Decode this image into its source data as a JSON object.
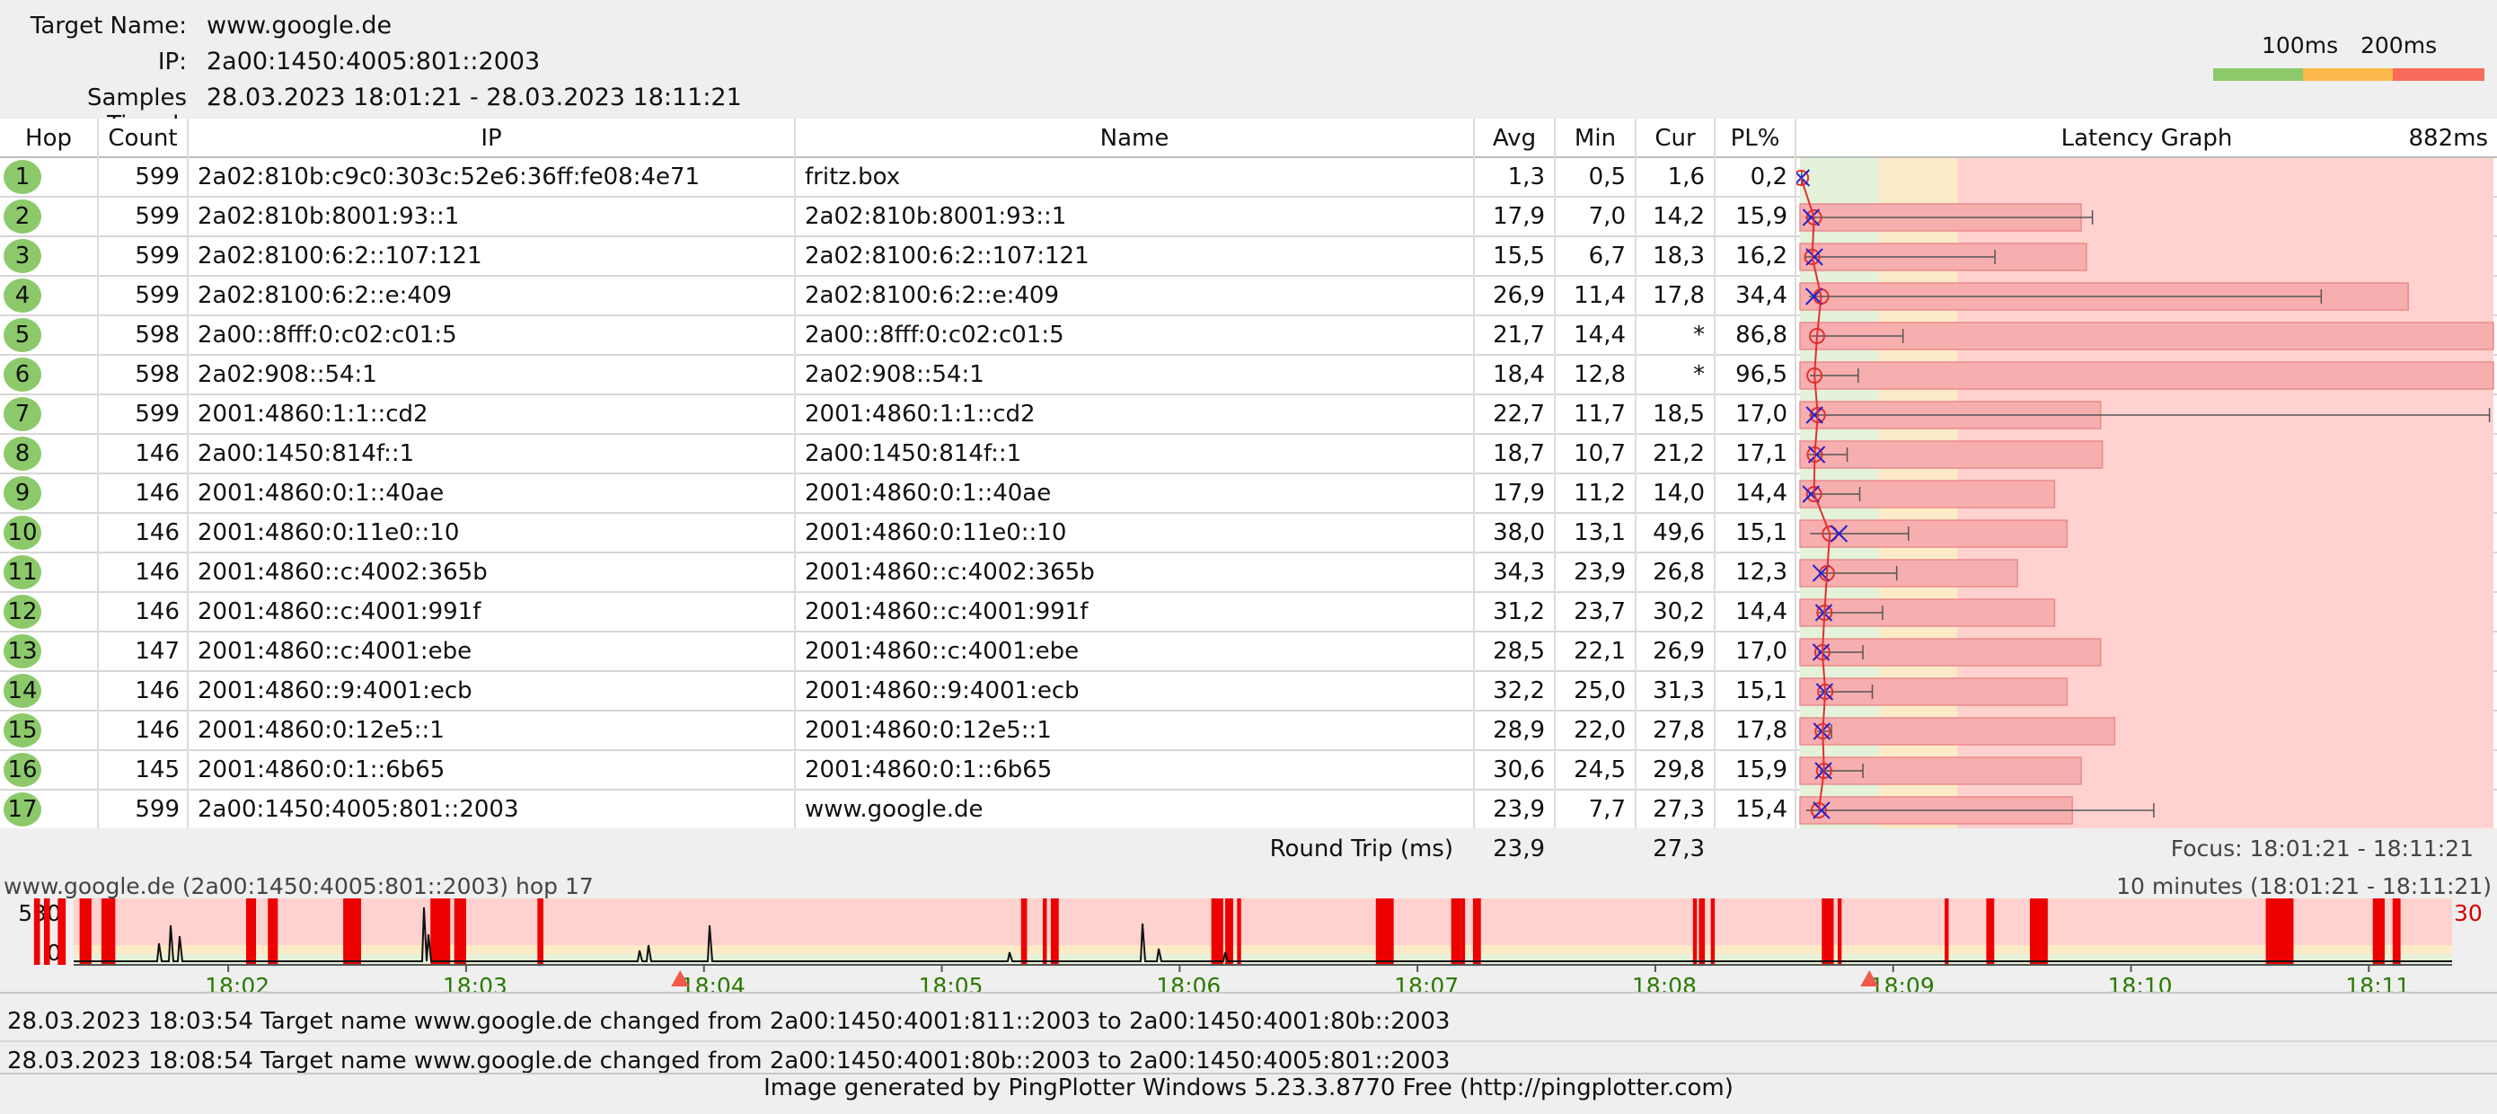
{
  "header": {
    "target_name_label": "Target Name:",
    "target_name": "www.google.de",
    "ip_label": "IP:",
    "ip": "2a00:1450:4005:801::2003",
    "samples_label": "Samples Timed:",
    "samples": "28.03.2023 18:01:21 - 28.03.2023 18:11:21"
  },
  "legend": {
    "label_100": "100ms",
    "label_200": "200ms",
    "colors": {
      "good": "#8cc96a",
      "warn": "#fbb84a",
      "bad": "#f96c5c"
    }
  },
  "columns": {
    "hop": "Hop",
    "count": "Count",
    "ip": "IP",
    "name": "Name",
    "avg": "Avg",
    "min": "Min",
    "cur": "Cur",
    "pl": "PL%",
    "graph": "Latency Graph",
    "graph_max": "882ms"
  },
  "rows": [
    {
      "hop": "1",
      "count": "599",
      "ip": "2a02:810b:c9c0:303c:52e6:36ff:fe08:4e71",
      "name": "fritz.box",
      "avg": "1,3",
      "min": "0,5",
      "cur": "1,6",
      "pl": "0,2",
      "avg_ms": 1.3,
      "min_ms": 0.5,
      "cur_ms": 1.6,
      "max_ms": 2,
      "pl_frac": 0.002
    },
    {
      "hop": "2",
      "count": "599",
      "ip": "2a02:810b:8001:93::1",
      "name": "2a02:810b:8001:93::1",
      "avg": "17,9",
      "min": "7,0",
      "cur": "14,2",
      "pl": "15,9",
      "avg_ms": 17.9,
      "min_ms": 7.0,
      "cur_ms": 14.2,
      "max_ms": 372,
      "pl_frac": 0.159
    },
    {
      "hop": "3",
      "count": "599",
      "ip": "2a02:8100:6:2::107:121",
      "name": "2a02:8100:6:2::107:121",
      "avg": "15,5",
      "min": "6,7",
      "cur": "18,3",
      "pl": "16,2",
      "avg_ms": 15.5,
      "min_ms": 6.7,
      "cur_ms": 18.3,
      "max_ms": 248,
      "pl_frac": 0.162
    },
    {
      "hop": "4",
      "count": "599",
      "ip": "2a02:8100:6:2::e:409",
      "name": "2a02:8100:6:2::e:409",
      "avg": "26,9",
      "min": "11,4",
      "cur": "17,8",
      "pl": "34,4",
      "avg_ms": 26.9,
      "min_ms": 11.4,
      "cur_ms": 17.8,
      "max_ms": 663,
      "pl_frac": 0.344
    },
    {
      "hop": "5",
      "count": "598",
      "ip": "2a00::8fff:0:c02:c01:5",
      "name": "2a00::8fff:0:c02:c01:5",
      "avg": "21,7",
      "min": "14,4",
      "cur": "*",
      "pl": "86,8",
      "avg_ms": 21.7,
      "min_ms": 14.4,
      "cur_ms": null,
      "max_ms": 131,
      "pl_frac": 0.868
    },
    {
      "hop": "6",
      "count": "598",
      "ip": "2a02:908::54:1",
      "name": "2a02:908::54:1",
      "avg": "18,4",
      "min": "12,8",
      "cur": "*",
      "pl": "96,5",
      "avg_ms": 18.4,
      "min_ms": 12.8,
      "cur_ms": null,
      "max_ms": 74,
      "pl_frac": 0.965
    },
    {
      "hop": "7",
      "count": "599",
      "ip": "2001:4860:1:1::cd2",
      "name": "2001:4860:1:1::cd2",
      "avg": "22,7",
      "min": "11,7",
      "cur": "18,5",
      "pl": "17,0",
      "avg_ms": 22.7,
      "min_ms": 11.7,
      "cur_ms": 18.5,
      "max_ms": 877,
      "pl_frac": 0.17
    },
    {
      "hop": "8",
      "count": "146",
      "ip": "2a00:1450:814f::1",
      "name": "2a00:1450:814f::1",
      "avg": "18,7",
      "min": "10,7",
      "cur": "21,2",
      "pl": "17,1",
      "avg_ms": 18.7,
      "min_ms": 10.7,
      "cur_ms": 21.2,
      "max_ms": 60,
      "pl_frac": 0.171
    },
    {
      "hop": "9",
      "count": "146",
      "ip": "2001:4860:0:1::40ae",
      "name": "2001:4860:0:1::40ae",
      "avg": "17,9",
      "min": "11,2",
      "cur": "14,0",
      "pl": "14,4",
      "avg_ms": 17.9,
      "min_ms": 11.2,
      "cur_ms": 14.0,
      "max_ms": 76,
      "pl_frac": 0.144
    },
    {
      "hop": "10",
      "count": "146",
      "ip": "2001:4860:0:11e0::10",
      "name": "2001:4860:0:11e0::10",
      "avg": "38,0",
      "min": "13,1",
      "cur": "49,6",
      "pl": "15,1",
      "avg_ms": 38.0,
      "min_ms": 13.1,
      "cur_ms": 49.6,
      "max_ms": 138,
      "pl_frac": 0.151
    },
    {
      "hop": "11",
      "count": "146",
      "ip": "2001:4860::c:4002:365b",
      "name": "2001:4860::c:4002:365b",
      "avg": "34,3",
      "min": "23,9",
      "cur": "26,8",
      "pl": "12,3",
      "avg_ms": 34.3,
      "min_ms": 23.9,
      "cur_ms": 26.8,
      "max_ms": 123,
      "pl_frac": 0.123
    },
    {
      "hop": "12",
      "count": "146",
      "ip": "2001:4860::c:4001:991f",
      "name": "2001:4860::c:4001:991f",
      "avg": "31,2",
      "min": "23,7",
      "cur": "30,2",
      "pl": "14,4",
      "avg_ms": 31.2,
      "min_ms": 23.7,
      "cur_ms": 30.2,
      "max_ms": 105,
      "pl_frac": 0.144
    },
    {
      "hop": "13",
      "count": "147",
      "ip": "2001:4860::c:4001:ebe",
      "name": "2001:4860::c:4001:ebe",
      "avg": "28,5",
      "min": "22,1",
      "cur": "26,9",
      "pl": "17,0",
      "avg_ms": 28.5,
      "min_ms": 22.1,
      "cur_ms": 26.9,
      "max_ms": 80,
      "pl_frac": 0.17
    },
    {
      "hop": "14",
      "count": "146",
      "ip": "2001:4860::9:4001:ecb",
      "name": "2001:4860::9:4001:ecb",
      "avg": "32,2",
      "min": "25,0",
      "cur": "31,3",
      "pl": "15,1",
      "avg_ms": 32.2,
      "min_ms": 25.0,
      "cur_ms": 31.3,
      "max_ms": 92,
      "pl_frac": 0.151
    },
    {
      "hop": "15",
      "count": "146",
      "ip": "2001:4860:0:12e5::1",
      "name": "2001:4860:0:12e5::1",
      "avg": "28,9",
      "min": "22,0",
      "cur": "27,8",
      "pl": "17,8",
      "avg_ms": 28.9,
      "min_ms": 22.0,
      "cur_ms": 27.8,
      "max_ms": 40,
      "pl_frac": 0.178
    },
    {
      "hop": "16",
      "count": "145",
      "ip": "2001:4860:0:1::6b65",
      "name": "2001:4860:0:1::6b65",
      "avg": "30,6",
      "min": "24,5",
      "cur": "29,8",
      "pl": "15,9",
      "avg_ms": 30.6,
      "min_ms": 24.5,
      "cur_ms": 29.8,
      "max_ms": 80,
      "pl_frac": 0.159
    },
    {
      "hop": "17",
      "count": "599",
      "ip": "2a00:1450:4005:801::2003",
      "name": "www.google.de",
      "avg": "23,9",
      "min": "7,7",
      "cur": "27,3",
      "pl": "15,4",
      "avg_ms": 23.9,
      "min_ms": 7.7,
      "cur_ms": 27.3,
      "max_ms": 450,
      "pl_frac": 0.154
    }
  ],
  "summary": {
    "label": "Round Trip (ms)",
    "avg": "23,9",
    "cur": "27,3",
    "focus": "Focus: 18:01:21 - 18:11:21"
  },
  "timeline": {
    "title": "www.google.de (2a00:1450:4005:801::2003) hop 17",
    "range": "10 minutes (18:01:21 - 18:11:21)",
    "y_top": "530",
    "y_zero": "0",
    "right_value": "30",
    "ticks": [
      "18:02",
      "18:03",
      "18:04",
      "18:05",
      "18:06",
      "18:07",
      "18:08",
      "18:09",
      "18:10",
      "18:11"
    ]
  },
  "events": [
    "28.03.2023 18:03:54 Target name www.google.de changed from 2a00:1450:4001:811::2003 to 2a00:1450:4001:80b::2003",
    "28.03.2023 18:08:54 Target name www.google.de changed from 2a00:1450:4001:80b::2003 to 2a00:1450:4005:801::2003"
  ],
  "footer": "Image generated by PingPlotter Windows 5.23.3.8770 Free (http://pingplotter.com)"
}
